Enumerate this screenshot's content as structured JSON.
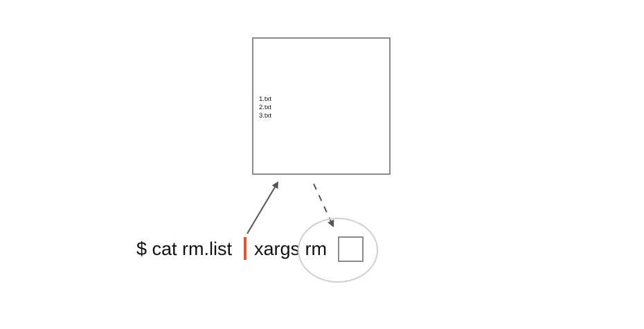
{
  "file": {
    "lines": [
      "1.txt",
      "2.txt",
      "3.txt"
    ]
  },
  "command": {
    "left_part": "$ cat rm.list",
    "right_part": "xargs rm"
  },
  "colors": {
    "pipe": "#e8532b",
    "box_border": "#8c8c8c",
    "circle_border": "#cfcfcf",
    "arrow": "#555555"
  }
}
